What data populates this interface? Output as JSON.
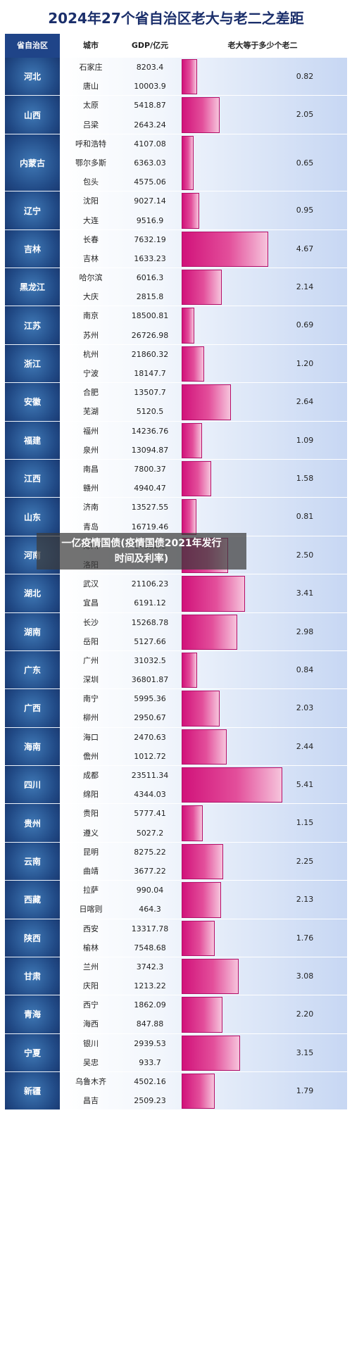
{
  "chart_data": {
    "type": "table",
    "title": "2024年27个省自治区老大与老二之差距",
    "columns": [
      "省自治区",
      "城市",
      "GDP/亿元",
      "老大等于多少个老二"
    ],
    "rows": [
      {
        "province": "河北",
        "cities": [
          "石家庄",
          "唐山"
        ],
        "gdp": [
          "8203.4",
          "10003.9"
        ],
        "ratio": "0.82",
        "ratio_value": 0.82
      },
      {
        "province": "山西",
        "cities": [
          "太原",
          "吕梁"
        ],
        "gdp": [
          "5418.87",
          "2643.24"
        ],
        "ratio": "2.05",
        "ratio_value": 2.05
      },
      {
        "province": "内蒙古",
        "cities": [
          "呼和浩特",
          "鄂尔多斯",
          "包头"
        ],
        "gdp": [
          "4107.08",
          "6363.03",
          "4575.06"
        ],
        "ratio": "0.65",
        "ratio_value": 0.65
      },
      {
        "province": "辽宁",
        "cities": [
          "沈阳",
          "大连"
        ],
        "gdp": [
          "9027.14",
          "9516.9"
        ],
        "ratio": "0.95",
        "ratio_value": 0.95
      },
      {
        "province": "吉林",
        "cities": [
          "长春",
          "吉林"
        ],
        "gdp": [
          "7632.19",
          "1633.23"
        ],
        "ratio": "4.67",
        "ratio_value": 4.67
      },
      {
        "province": "黑龙江",
        "cities": [
          "哈尔滨",
          "大庆"
        ],
        "gdp": [
          "6016.3",
          "2815.8"
        ],
        "ratio": "2.14",
        "ratio_value": 2.14
      },
      {
        "province": "江苏",
        "cities": [
          "南京",
          "苏州"
        ],
        "gdp": [
          "18500.81",
          "26726.98"
        ],
        "ratio": "0.69",
        "ratio_value": 0.69
      },
      {
        "province": "浙江",
        "cities": [
          "杭州",
          "宁波"
        ],
        "gdp": [
          "21860.32",
          "18147.7"
        ],
        "ratio": "1.20",
        "ratio_value": 1.2
      },
      {
        "province": "安徽",
        "cities": [
          "合肥",
          "芜湖"
        ],
        "gdp": [
          "13507.7",
          "5120.5"
        ],
        "ratio": "2.64",
        "ratio_value": 2.64
      },
      {
        "province": "福建",
        "cities": [
          "福州",
          "泉州"
        ],
        "gdp": [
          "14236.76",
          "13094.87"
        ],
        "ratio": "1.09",
        "ratio_value": 1.09
      },
      {
        "province": "江西",
        "cities": [
          "南昌",
          "赣州"
        ],
        "gdp": [
          "7800.37",
          "4940.47"
        ],
        "ratio": "1.58",
        "ratio_value": 1.58
      },
      {
        "province": "山东",
        "cities": [
          "济南",
          "青岛"
        ],
        "gdp": [
          "13527.55",
          "16719.46"
        ],
        "ratio": "0.81",
        "ratio_value": 0.81
      },
      {
        "province": "河南",
        "cities": [
          "郑州",
          "洛阳"
        ],
        "gdp": [
          "14532.1",
          ""
        ],
        "ratio": "2.50",
        "ratio_value": 2.5
      },
      {
        "province": "湖北",
        "cities": [
          "武汉",
          "宜昌"
        ],
        "gdp": [
          "21106.23",
          "6191.12"
        ],
        "ratio": "3.41",
        "ratio_value": 3.41
      },
      {
        "province": "湖南",
        "cities": [
          "长沙",
          "岳阳"
        ],
        "gdp": [
          "15268.78",
          "5127.66"
        ],
        "ratio": "2.98",
        "ratio_value": 2.98
      },
      {
        "province": "广东",
        "cities": [
          "广州",
          "深圳"
        ],
        "gdp": [
          "31032.5",
          "36801.87"
        ],
        "ratio": "0.84",
        "ratio_value": 0.84
      },
      {
        "province": "广西",
        "cities": [
          "南宁",
          "柳州"
        ],
        "gdp": [
          "5995.36",
          "2950.67"
        ],
        "ratio": "2.03",
        "ratio_value": 2.03
      },
      {
        "province": "海南",
        "cities": [
          "海口",
          "儋州"
        ],
        "gdp": [
          "2470.63",
          "1012.72"
        ],
        "ratio": "2.44",
        "ratio_value": 2.44
      },
      {
        "province": "四川",
        "cities": [
          "成都",
          "绵阳"
        ],
        "gdp": [
          "23511.34",
          "4344.03"
        ],
        "ratio": "5.41",
        "ratio_value": 5.41
      },
      {
        "province": "贵州",
        "cities": [
          "贵阳",
          "遵义"
        ],
        "gdp": [
          "5777.41",
          "5027.2"
        ],
        "ratio": "1.15",
        "ratio_value": 1.15
      },
      {
        "province": "云南",
        "cities": [
          "昆明",
          "曲靖"
        ],
        "gdp": [
          "8275.22",
          "3677.22"
        ],
        "ratio": "2.25",
        "ratio_value": 2.25
      },
      {
        "province": "西藏",
        "cities": [
          "拉萨",
          "日喀则"
        ],
        "gdp": [
          "990.04",
          "464.3"
        ],
        "ratio": "2.13",
        "ratio_value": 2.13
      },
      {
        "province": "陕西",
        "cities": [
          "西安",
          "榆林"
        ],
        "gdp": [
          "13317.78",
          "7548.68"
        ],
        "ratio": "1.76",
        "ratio_value": 1.76
      },
      {
        "province": "甘肃",
        "cities": [
          "兰州",
          "庆阳"
        ],
        "gdp": [
          "3742.3",
          "1213.22"
        ],
        "ratio": "3.08",
        "ratio_value": 3.08
      },
      {
        "province": "青海",
        "cities": [
          "西宁",
          "海西"
        ],
        "gdp": [
          "1862.09",
          "847.88"
        ],
        "ratio": "2.20",
        "ratio_value": 2.2
      },
      {
        "province": "宁夏",
        "cities": [
          "银川",
          "吴忠"
        ],
        "gdp": [
          "2939.53",
          "933.7"
        ],
        "ratio": "3.15",
        "ratio_value": 3.15
      },
      {
        "province": "新疆",
        "cities": [
          "乌鲁木齐",
          "昌吉"
        ],
        "gdp": [
          "4502.16",
          "2509.23"
        ],
        "ratio": "1.79",
        "ratio_value": 1.79
      }
    ],
    "ratio_max": 5.41
  },
  "overlay": {
    "line1": "一亿疫情国债(疫情国债2021年发行",
    "line2": "时间及利率)"
  }
}
